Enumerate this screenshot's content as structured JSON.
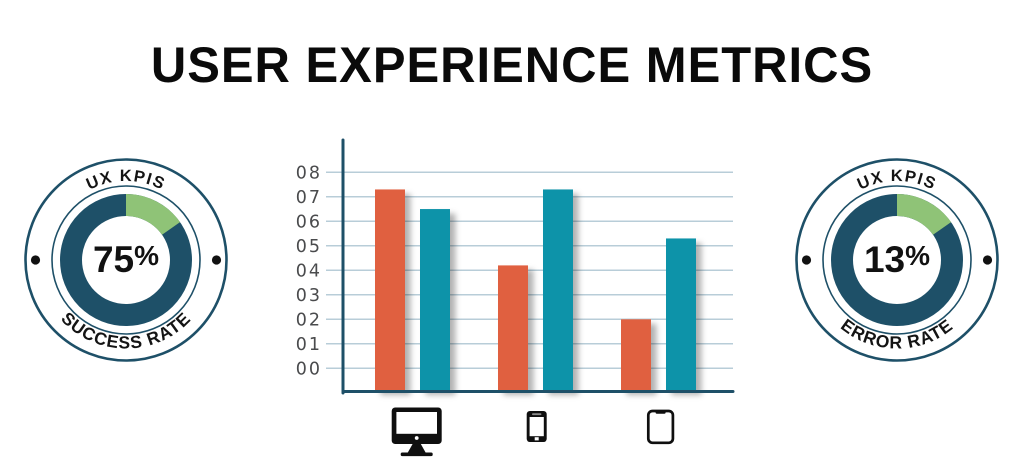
{
  "title": "USER EXPERIENCE METRICS",
  "badges": {
    "left": {
      "top_label": "UX KPIS",
      "value": "75",
      "unit": "%",
      "bottom_label": "SUCCESS RATE"
    },
    "right": {
      "top_label": "UX KPIS",
      "value": "13",
      "unit": "%",
      "bottom_label": "ERROR RATE"
    }
  },
  "chart_data": {
    "type": "bar",
    "categories": [
      "desktop",
      "smartphone",
      "tablet"
    ],
    "series": [
      {
        "name": "series-orange",
        "color": "#e06040",
        "values": [
          7.3,
          4.2,
          2.0
        ]
      },
      {
        "name": "series-teal",
        "color": "#0a93a9",
        "values": [
          6.5,
          7.3,
          5.3
        ]
      }
    ],
    "y_ticks": [
      "08",
      "07",
      "06",
      "05",
      "04",
      "03",
      "02",
      "01",
      "00"
    ],
    "ylim": [
      0,
      8
    ],
    "grid": true,
    "legend": "none",
    "x_axis_labels": "device icons (desktop monitor, smartphone, tablet)"
  },
  "colors": {
    "navy": "#1e5068",
    "green": "#8fc377",
    "orange": "#e06040",
    "teal": "#0a93a9",
    "gridline": "#b8cdd8",
    "tick_label": "#4a4b4d"
  }
}
